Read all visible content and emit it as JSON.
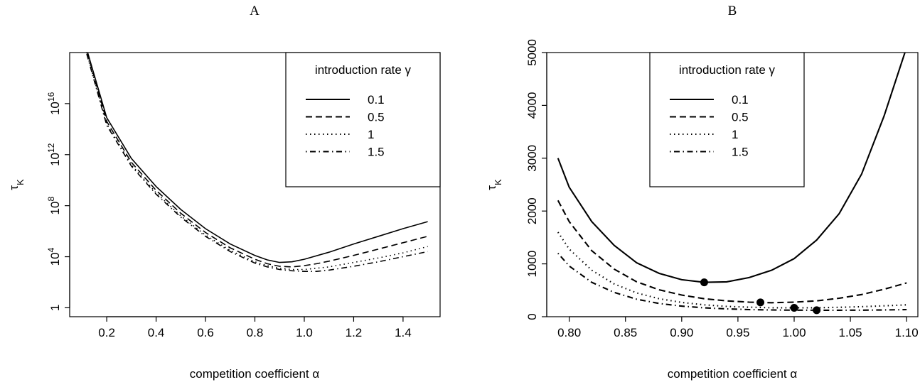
{
  "chart_data": [
    {
      "type": "line",
      "panel_label": "A",
      "xlabel": "competition coefficient α",
      "ylabel": "τ",
      "ylabel_sub": "K",
      "x_range": [
        0.05,
        1.55
      ],
      "y_scale": "log10",
      "y_range_log10": [
        -0.7,
        20
      ],
      "x_ticks": [
        0.2,
        0.4,
        0.6,
        0.8,
        1.0,
        1.2,
        1.4
      ],
      "x_tick_labels": [
        "0.2",
        "0.4",
        "0.6",
        "0.8",
        "1.0",
        "1.2",
        "1.4"
      ],
      "y_ticks_log10": [
        0,
        4,
        8,
        12,
        16
      ],
      "y_tick_labels": [
        {
          "base": "1",
          "exp": ""
        },
        {
          "base": "10",
          "exp": "4"
        },
        {
          "base": "10",
          "exp": "8"
        },
        {
          "base": "10",
          "exp": "12"
        },
        {
          "base": "10",
          "exp": "16"
        }
      ],
      "legend": {
        "title": "introduction rate γ",
        "position": "top-right"
      },
      "series": [
        {
          "name": "0.1",
          "dash": "solid",
          "x": [
            0.1,
            0.2,
            0.3,
            0.4,
            0.5,
            0.6,
            0.7,
            0.8,
            0.85,
            0.9,
            0.95,
            1.0,
            1.1,
            1.2,
            1.3,
            1.4,
            1.5
          ],
          "y_log10": [
            21.5,
            14.9,
            11.7,
            9.5,
            7.7,
            6.2,
            5.0,
            4.1,
            3.75,
            3.55,
            3.6,
            3.8,
            4.35,
            5.0,
            5.6,
            6.2,
            6.75
          ]
        },
        {
          "name": "0.5",
          "dash": "dashed",
          "x": [
            0.1,
            0.2,
            0.3,
            0.4,
            0.5,
            0.6,
            0.7,
            0.8,
            0.85,
            0.9,
            0.95,
            1.0,
            1.05,
            1.1,
            1.2,
            1.3,
            1.4,
            1.5
          ],
          "y_log10": [
            21.5,
            14.6,
            11.4,
            9.2,
            7.4,
            5.9,
            4.7,
            3.8,
            3.45,
            3.25,
            3.2,
            3.3,
            3.45,
            3.65,
            4.1,
            4.6,
            5.1,
            5.6
          ]
        },
        {
          "name": "1",
          "dash": "dotted",
          "x": [
            0.1,
            0.2,
            0.3,
            0.4,
            0.5,
            0.6,
            0.7,
            0.8,
            0.85,
            0.9,
            0.95,
            1.0,
            1.05,
            1.1,
            1.2,
            1.3,
            1.4,
            1.5
          ],
          "y_log10": [
            21.3,
            14.4,
            11.2,
            9.0,
            7.2,
            5.7,
            4.5,
            3.6,
            3.3,
            3.1,
            3.0,
            3.0,
            3.1,
            3.2,
            3.55,
            3.9,
            4.3,
            4.8
          ]
        },
        {
          "name": "1.5",
          "dash": "dotdash",
          "x": [
            0.1,
            0.2,
            0.3,
            0.4,
            0.5,
            0.6,
            0.7,
            0.8,
            0.85,
            0.9,
            0.95,
            1.0,
            1.05,
            1.1,
            1.2,
            1.3,
            1.4,
            1.5
          ],
          "y_log10": [
            21.2,
            14.3,
            11.1,
            8.9,
            7.1,
            5.6,
            4.4,
            3.5,
            3.2,
            3.0,
            2.9,
            2.85,
            2.85,
            2.95,
            3.25,
            3.6,
            4.0,
            4.4
          ]
        }
      ]
    },
    {
      "type": "line",
      "panel_label": "B",
      "xlabel": "competition coefficient α",
      "ylabel": "τ",
      "ylabel_sub": "K",
      "x_range": [
        0.78,
        1.11
      ],
      "y_range": [
        0,
        5000
      ],
      "x_ticks": [
        0.8,
        0.85,
        0.9,
        0.95,
        1.0,
        1.05,
        1.1
      ],
      "x_tick_labels": [
        "0.80",
        "0.85",
        "0.90",
        "0.95",
        "1.00",
        "1.05",
        "1.10"
      ],
      "y_ticks": [
        0,
        1000,
        2000,
        3000,
        4000,
        5000
      ],
      "y_tick_labels": [
        "0",
        "1000",
        "2000",
        "3000",
        "4000",
        "5000"
      ],
      "legend": {
        "title": "introduction rate γ",
        "position": "top-center"
      },
      "series": [
        {
          "name": "0.1",
          "dash": "solid",
          "x": [
            0.79,
            0.8,
            0.82,
            0.84,
            0.86,
            0.88,
            0.9,
            0.92,
            0.94,
            0.96,
            0.98,
            1.0,
            1.02,
            1.04,
            1.06,
            1.08,
            1.1
          ],
          "y": [
            3000,
            2450,
            1800,
            1350,
            1020,
            820,
            700,
            650,
            660,
            740,
            880,
            1100,
            1450,
            1950,
            2700,
            3800,
            5100
          ]
        },
        {
          "name": "0.5",
          "dash": "dashed",
          "x": [
            0.79,
            0.8,
            0.82,
            0.84,
            0.86,
            0.88,
            0.9,
            0.92,
            0.94,
            0.96,
            0.98,
            1.0,
            1.02,
            1.04,
            1.06,
            1.08,
            1.1
          ],
          "y": [
            2200,
            1800,
            1250,
            900,
            660,
            510,
            410,
            340,
            300,
            275,
            265,
            275,
            300,
            350,
            420,
            520,
            640
          ]
        },
        {
          "name": "1",
          "dash": "dotted",
          "x": [
            0.79,
            0.8,
            0.82,
            0.84,
            0.86,
            0.88,
            0.9,
            0.92,
            0.94,
            0.96,
            0.98,
            1.0,
            1.02,
            1.04,
            1.06,
            1.08,
            1.1
          ],
          "y": [
            1600,
            1280,
            880,
            620,
            450,
            340,
            270,
            225,
            195,
            180,
            170,
            168,
            170,
            178,
            190,
            205,
            225
          ]
        },
        {
          "name": "1.5",
          "dash": "dotdash",
          "x": [
            0.79,
            0.8,
            0.82,
            0.84,
            0.86,
            0.88,
            0.9,
            0.92,
            0.94,
            0.96,
            0.98,
            1.0,
            1.02,
            1.04,
            1.06,
            1.08,
            1.1
          ],
          "y": [
            1200,
            960,
            650,
            460,
            330,
            250,
            200,
            168,
            148,
            135,
            128,
            124,
            122,
            122,
            124,
            128,
            135
          ]
        }
      ],
      "minima": [
        {
          "series": "0.1",
          "x": 0.92,
          "y": 650
        },
        {
          "series": "0.5",
          "x": 0.97,
          "y": 270
        },
        {
          "series": "1",
          "x": 1.0,
          "y": 168
        },
        {
          "series": "1.5",
          "x": 1.02,
          "y": 122
        }
      ]
    }
  ]
}
